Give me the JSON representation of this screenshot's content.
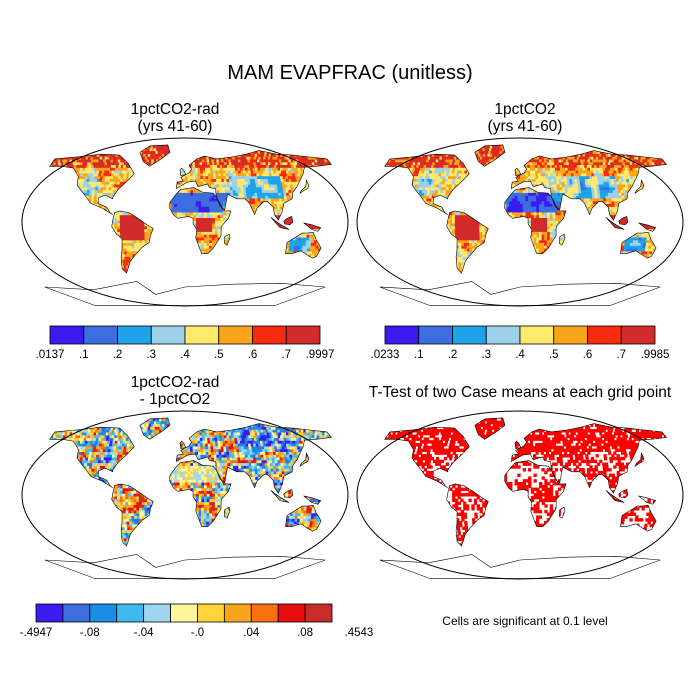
{
  "figure": {
    "title": "MAM EVAPFRAC (unitless)",
    "note": "Cells are significant at 0.1 level"
  },
  "panels": [
    {
      "id": "rad",
      "title_line1": "1pctCO2-rad",
      "title_line2": "(yrs 41-60)"
    },
    {
      "id": "ctl",
      "title_line1": "1pctCO2",
      "title_line2": "(yrs 41-60)"
    },
    {
      "id": "diff",
      "title_line1": "1pctCO2-rad",
      "title_line2": "- 1pctCO2"
    },
    {
      "id": "ttest",
      "title_line1": "T-Test of two Case means at each grid point",
      "title_line2": ""
    }
  ],
  "chart_data": [
    {
      "type": "heatmap",
      "title": "1pctCO2-rad (yrs 41-60)",
      "colorbar": {
        "colors": [
          "#3a1cf0",
          "#3d6ee0",
          "#1fa3e8",
          "#9ed0ea",
          "#fdea6c",
          "#f9a51b",
          "#f52b10",
          "#d22b2b"
        ],
        "tick_labels": [
          ".0137",
          ".1",
          ".2",
          ".3",
          ".4",
          ".5",
          ".6",
          ".7",
          ".9997"
        ],
        "boundaries": [
          0.0137,
          0.1,
          0.2,
          0.3,
          0.4,
          0.5,
          0.6,
          0.7,
          0.9997
        ]
      }
    },
    {
      "type": "heatmap",
      "title": "1pctCO2 (yrs 41-60)",
      "colorbar": {
        "colors": [
          "#3a1cf0",
          "#3d6ee0",
          "#1fa3e8",
          "#9ed0ea",
          "#fdea6c",
          "#f9a51b",
          "#f52b10",
          "#d22b2b"
        ],
        "tick_labels": [
          ".0233",
          ".1",
          ".2",
          ".3",
          ".4",
          ".5",
          ".6",
          ".7",
          ".9985"
        ],
        "boundaries": [
          0.0233,
          0.1,
          0.2,
          0.3,
          0.4,
          0.5,
          0.6,
          0.7,
          0.9985
        ]
      }
    },
    {
      "type": "heatmap",
      "title": "1pctCO2-rad - 1pctCO2",
      "colorbar": {
        "colors": [
          "#3a1cf0",
          "#3d6ee0",
          "#1a8de8",
          "#3fbaf0",
          "#9ed6f2",
          "#fdf59a",
          "#fdd43a",
          "#f9a51b",
          "#f87010",
          "#e80e0e",
          "#c92a2a"
        ],
        "tick_labels": [
          "-.4947",
          "-.08",
          "-.04",
          "-.0",
          ".04",
          ".08",
          ".4543"
        ]
      }
    },
    {
      "type": "heatmap",
      "title": "T-Test of two Case means at each grid point",
      "significance_color": "#ff0000",
      "significance_level": 0.1
    }
  ]
}
